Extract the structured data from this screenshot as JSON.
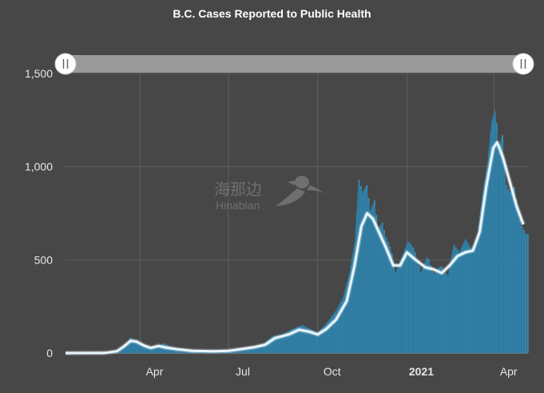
{
  "chart_data": {
    "type": "bar",
    "title": "B.C. Cases Reported to Public Health",
    "xlabel": "",
    "ylabel": "",
    "x_range": [
      "2020-01-15",
      "2021-05-05"
    ],
    "ylim": [
      0,
      1500
    ],
    "y_ticks": [
      0,
      500,
      1000,
      1500
    ],
    "y_tick_labels": [
      "0",
      "500",
      "1,000",
      "1,500"
    ],
    "x_ticks": [
      {
        "date": "2020-04-01",
        "label": "Apr",
        "bold": false
      },
      {
        "date": "2020-07-01",
        "label": "Jul",
        "bold": false
      },
      {
        "date": "2020-10-01",
        "label": "Oct",
        "bold": false
      },
      {
        "date": "2021-01-01",
        "label": "2021",
        "bold": true
      },
      {
        "date": "2021-04-01",
        "label": "Apr",
        "bold": false
      }
    ],
    "grid": true,
    "legend": "none",
    "range_selector": {
      "start": "2020-01-15",
      "end": "2021-05-05"
    },
    "watermark": {
      "chinese": "海那边",
      "latin": "Hinabian"
    },
    "series": [
      {
        "kind": "daily",
        "color": "#2e7ea6",
        "points": [
          [
            "2020-01-15",
            0
          ],
          [
            "2020-02-20",
            2
          ],
          [
            "2020-03-05",
            8
          ],
          [
            "2020-03-12",
            25
          ],
          [
            "2020-03-18",
            55
          ],
          [
            "2020-03-22",
            85
          ],
          [
            "2020-03-26",
            65
          ],
          [
            "2020-04-01",
            50
          ],
          [
            "2020-04-08",
            35
          ],
          [
            "2020-04-15",
            28
          ],
          [
            "2020-04-20",
            35
          ],
          [
            "2020-04-25",
            55
          ],
          [
            "2020-05-01",
            35
          ],
          [
            "2020-05-10",
            22
          ],
          [
            "2020-05-20",
            15
          ],
          [
            "2020-06-01",
            10
          ],
          [
            "2020-06-15",
            12
          ],
          [
            "2020-07-01",
            15
          ],
          [
            "2020-07-15",
            25
          ],
          [
            "2020-07-25",
            35
          ],
          [
            "2020-08-05",
            45
          ],
          [
            "2020-08-15",
            90
          ],
          [
            "2020-08-25",
            100
          ],
          [
            "2020-09-05",
            130
          ],
          [
            "2020-09-15",
            150
          ],
          [
            "2020-09-22",
            130
          ],
          [
            "2020-10-01",
            110
          ],
          [
            "2020-10-10",
            160
          ],
          [
            "2020-10-20",
            230
          ],
          [
            "2020-10-27",
            300
          ],
          [
            "2020-11-03",
            440
          ],
          [
            "2020-11-08",
            600
          ],
          [
            "2020-11-12",
            930
          ],
          [
            "2020-11-16",
            860
          ],
          [
            "2020-11-20",
            900
          ],
          [
            "2020-11-24",
            760
          ],
          [
            "2020-11-28",
            820
          ],
          [
            "2020-12-02",
            660
          ],
          [
            "2020-12-06",
            700
          ],
          [
            "2020-12-10",
            620
          ],
          [
            "2020-12-15",
            560
          ],
          [
            "2020-12-20",
            430
          ],
          [
            "2020-12-27",
            520
          ],
          [
            "2021-01-02",
            600
          ],
          [
            "2021-01-08",
            560
          ],
          [
            "2021-01-15",
            430
          ],
          [
            "2021-01-22",
            520
          ],
          [
            "2021-01-28",
            420
          ],
          [
            "2021-02-05",
            470
          ],
          [
            "2021-02-12",
            410
          ],
          [
            "2021-02-18",
            580
          ],
          [
            "2021-02-24",
            540
          ],
          [
            "2021-03-02",
            610
          ],
          [
            "2021-03-08",
            560
          ],
          [
            "2021-03-14",
            600
          ],
          [
            "2021-03-20",
            860
          ],
          [
            "2021-03-25",
            1030
          ],
          [
            "2021-03-29",
            1240
          ],
          [
            "2021-04-02",
            1310
          ],
          [
            "2021-04-05",
            1080
          ],
          [
            "2021-04-09",
            1170
          ],
          [
            "2021-04-13",
            900
          ],
          [
            "2021-04-17",
            860
          ],
          [
            "2021-04-21",
            890
          ],
          [
            "2021-04-25",
            760
          ],
          [
            "2021-04-29",
            680
          ],
          [
            "2021-05-03",
            640
          ]
        ]
      },
      {
        "kind": "7-day average",
        "color": "#e8f6fb",
        "points": [
          [
            "2020-01-15",
            0
          ],
          [
            "2020-02-25",
            1
          ],
          [
            "2020-03-08",
            10
          ],
          [
            "2020-03-15",
            35
          ],
          [
            "2020-03-22",
            65
          ],
          [
            "2020-03-28",
            62
          ],
          [
            "2020-04-05",
            40
          ],
          [
            "2020-04-12",
            28
          ],
          [
            "2020-04-20",
            38
          ],
          [
            "2020-04-27",
            30
          ],
          [
            "2020-05-10",
            20
          ],
          [
            "2020-05-25",
            12
          ],
          [
            "2020-06-15",
            10
          ],
          [
            "2020-07-01",
            12
          ],
          [
            "2020-07-15",
            22
          ],
          [
            "2020-07-28",
            32
          ],
          [
            "2020-08-08",
            45
          ],
          [
            "2020-08-18",
            80
          ],
          [
            "2020-09-01",
            100
          ],
          [
            "2020-09-12",
            125
          ],
          [
            "2020-09-22",
            115
          ],
          [
            "2020-10-01",
            100
          ],
          [
            "2020-10-10",
            130
          ],
          [
            "2020-10-20",
            180
          ],
          [
            "2020-10-31",
            280
          ],
          [
            "2020-11-08",
            470
          ],
          [
            "2020-11-15",
            680
          ],
          [
            "2020-11-21",
            750
          ],
          [
            "2020-11-27",
            720
          ],
          [
            "2020-12-03",
            650
          ],
          [
            "2020-12-10",
            570
          ],
          [
            "2020-12-18",
            470
          ],
          [
            "2020-12-25",
            470
          ],
          [
            "2021-01-01",
            540
          ],
          [
            "2021-01-10",
            500
          ],
          [
            "2021-01-20",
            460
          ],
          [
            "2021-01-28",
            450
          ],
          [
            "2021-02-06",
            430
          ],
          [
            "2021-02-14",
            470
          ],
          [
            "2021-02-22",
            520
          ],
          [
            "2021-03-02",
            540
          ],
          [
            "2021-03-10",
            550
          ],
          [
            "2021-03-17",
            650
          ],
          [
            "2021-03-24",
            900
          ],
          [
            "2021-03-31",
            1100
          ],
          [
            "2021-04-04",
            1130
          ],
          [
            "2021-04-10",
            1050
          ],
          [
            "2021-04-17",
            920
          ],
          [
            "2021-04-24",
            790
          ],
          [
            "2021-05-01",
            690
          ]
        ]
      }
    ]
  }
}
